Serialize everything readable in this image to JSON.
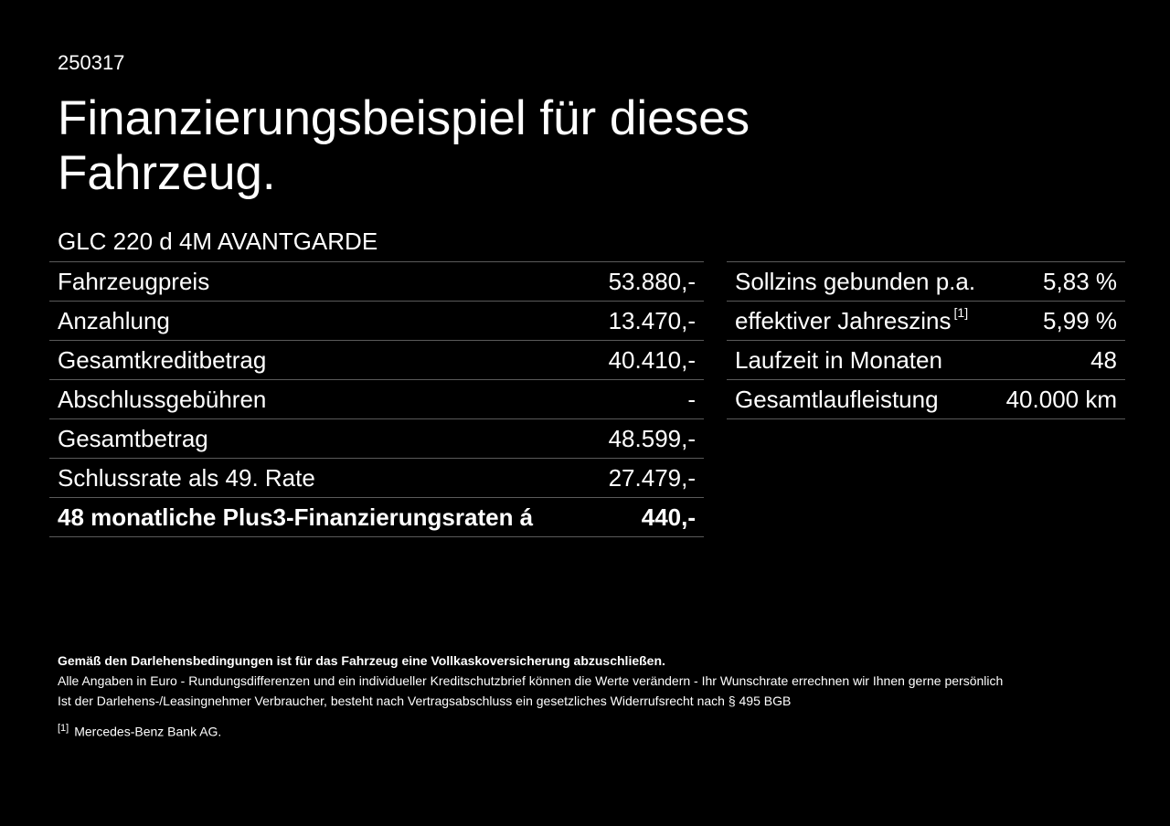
{
  "code": "250317",
  "title": "Finanzierungsbeispiel für dieses Fahrzeug.",
  "model": "GLC 220 d 4M AVANTGARDE",
  "left_rows": [
    {
      "label": "Fahrzeugpreis",
      "value": "53.880,-"
    },
    {
      "label": "Anzahlung",
      "value": "13.470,-"
    },
    {
      "label": "Gesamtkreditbetrag",
      "value": "40.410,-"
    },
    {
      "label": "Abschlussgebühren",
      "value": "-"
    },
    {
      "label": "Gesamtbetrag",
      "value": "48.599,-"
    },
    {
      "label": "Schlussrate als 49. Rate",
      "value": "27.479,-"
    },
    {
      "label": "48 monatliche Plus3-Finanzierungsraten á",
      "value": "440,-"
    }
  ],
  "right_rows": [
    {
      "label": "Sollzins gebunden p.a.",
      "value": "5,83 %"
    },
    {
      "label": "effektiver Jahreszins",
      "ref": "[1]",
      "value": "5,99 %"
    },
    {
      "label": "Laufzeit in Monaten",
      "value": "48"
    },
    {
      "label": "Gesamtlaufleistung",
      "value": "40.000 km"
    }
  ],
  "notes": {
    "bold": "Gemäß den Darlehensbedingungen ist für das Fahrzeug eine Vollkaskoversicherung abzuschließen.",
    "line1": "Alle Angaben in Euro - Rundungsdifferenzen und ein individueller Kreditschutzbrief können die Werte verändern - Ihr Wunschrate errechnen wir Ihnen gerne persönlich",
    "line2": "Ist der Darlehens-/Leasingnehmer Verbraucher, besteht nach Vertragsabschluss ein gesetzliches Widerrufsrecht nach § 495 BGB",
    "footnote_ref": "[1]",
    "footnote_text": "Mercedes-Benz Bank AG."
  }
}
